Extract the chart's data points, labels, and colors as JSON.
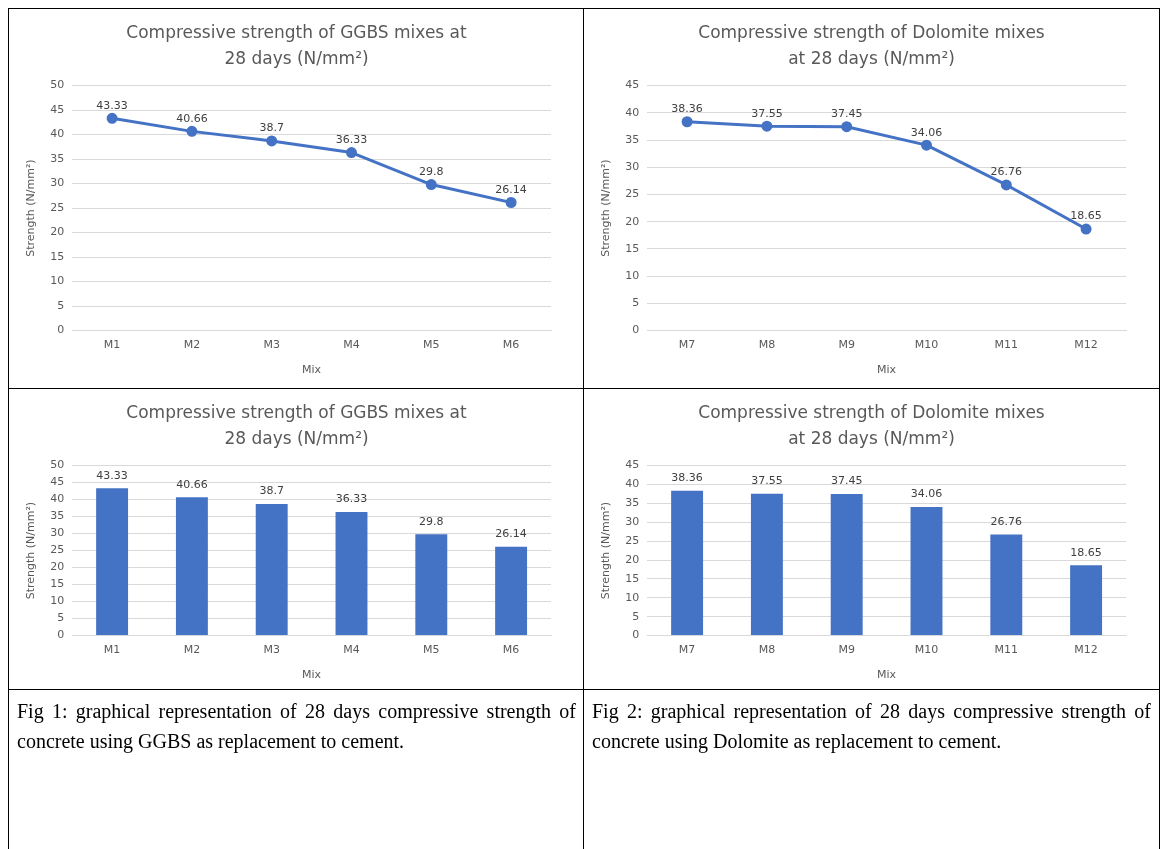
{
  "chart_data": [
    {
      "type": "line",
      "title": "Compressive strength of GGBS mixes at 28 days (N/mm²)",
      "xlabel": "Mix",
      "ylabel": "Strength (N/mm²)",
      "categories": [
        "M1",
        "M2",
        "M3",
        "M4",
        "M5",
        "M6"
      ],
      "series": [
        {
          "color": "#4472c4",
          "values": [
            43.33,
            40.66,
            38.7,
            36.33,
            29.8,
            26.14
          ]
        }
      ],
      "ylim": [
        0,
        50
      ],
      "yticks": [
        0,
        5,
        10,
        15,
        20,
        25,
        30,
        35,
        40,
        45,
        50
      ],
      "grid": "y",
      "legend": false,
      "marker": "circle",
      "data_labels": true
    },
    {
      "type": "line",
      "title": "Compressive strength of Dolomite mixes at 28 days (N/mm²)",
      "xlabel": "Mix",
      "ylabel": "Strength (N/mm²)",
      "categories": [
        "M7",
        "M8",
        "M9",
        "M10",
        "M11",
        "M12"
      ],
      "series": [
        {
          "color": "#4472c4",
          "values": [
            38.36,
            37.55,
            37.45,
            34.06,
            26.76,
            18.65
          ]
        }
      ],
      "ylim": [
        0,
        45
      ],
      "yticks": [
        0,
        5,
        10,
        15,
        20,
        25,
        30,
        35,
        40,
        45
      ],
      "grid": "y",
      "legend": false,
      "marker": "circle",
      "data_labels": true
    },
    {
      "type": "bar",
      "title": "Compressive strength of GGBS mixes at 28 days (N/mm²)",
      "xlabel": "Mix",
      "ylabel": "Strength (N/mm²)",
      "categories": [
        "M1",
        "M2",
        "M3",
        "M4",
        "M5",
        "M6"
      ],
      "series": [
        {
          "color": "#4472c4",
          "values": [
            43.33,
            40.66,
            38.7,
            36.33,
            29.8,
            26.14
          ]
        }
      ],
      "ylim": [
        0,
        50
      ],
      "yticks": [
        0,
        5,
        10,
        15,
        20,
        25,
        30,
        35,
        40,
        45,
        50
      ],
      "grid": "y",
      "legend": false,
      "data_labels": true,
      "annotations": [
        "Fig 1: graphical representation of 28 days compressive strength of concrete using GGBS as replacement to cement."
      ]
    },
    {
      "type": "bar",
      "title": "Compressive strength of Dolomite mixes at 28 days (N/mm²)",
      "xlabel": "Mix",
      "ylabel": "Strength (N/mm²)",
      "categories": [
        "M7",
        "M8",
        "M9",
        "M10",
        "M11",
        "M12"
      ],
      "series": [
        {
          "color": "#4472c4",
          "values": [
            38.36,
            37.55,
            37.45,
            34.06,
            26.76,
            18.65
          ]
        }
      ],
      "ylim": [
        0,
        45
      ],
      "yticks": [
        0,
        5,
        10,
        15,
        20,
        25,
        30,
        35,
        40,
        45
      ],
      "grid": "y",
      "legend": false,
      "data_labels": true,
      "annotations": [
        "Fig 2: graphical representation of 28 days compressive strength of concrete using Dolomite as replacement to cement."
      ]
    }
  ]
}
